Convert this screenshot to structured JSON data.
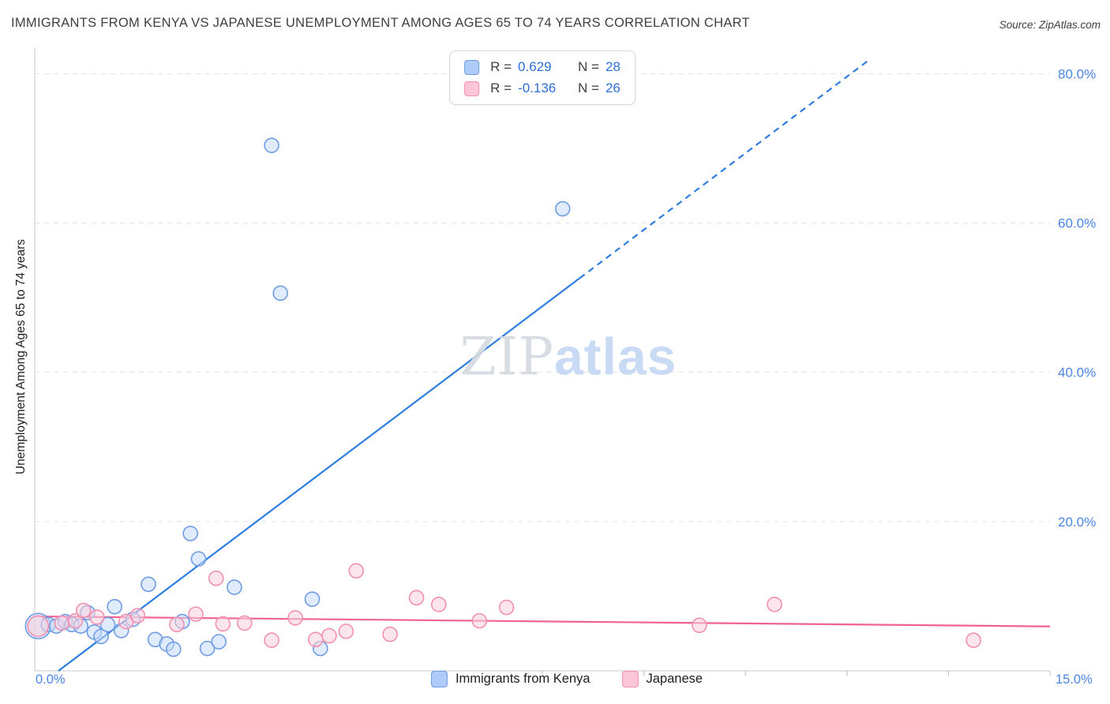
{
  "header": {
    "source": "Source: ZipAtlas.com"
  },
  "watermark": {
    "part1": "ZIP",
    "part2": "atlas"
  },
  "legend_box": {
    "rows": [
      {
        "r_label": "R =",
        "r_value": "0.629",
        "n_label": "N =",
        "n_value": "28"
      },
      {
        "r_label": "R =",
        "r_value": "-0.136",
        "n_label": "N =",
        "n_value": "26"
      }
    ]
  },
  "bottom_legend": {
    "items": [
      {
        "label": "Immigrants from Kenya"
      },
      {
        "label": "Japanese"
      }
    ]
  },
  "chart_data": {
    "type": "scatter",
    "title": "IMMIGRANTS FROM KENYA VS JAPANESE UNEMPLOYMENT AMONG AGES 65 TO 74 YEARS CORRELATION CHART",
    "ylabel": "Unemployment Among Ages 65 to 74 years",
    "x_tick_labels": {
      "min": "0.0%",
      "max": "15.0%"
    },
    "x_axis": {
      "min": 0,
      "max": 15,
      "minor_ticks": [
        7.5,
        9,
        10.5,
        12,
        13.5,
        15
      ]
    },
    "y_axis": {
      "min": 0,
      "max": 83,
      "ticks": [
        20,
        40,
        60,
        80
      ]
    },
    "colors": {
      "axis_labels": "#4a86e8",
      "blue_line": "#2e7de0",
      "pink_line": "#f06292",
      "gridline": "#e1e1e1"
    },
    "series": [
      {
        "name": "Immigrants from Kenya",
        "R": 0.629,
        "N": 28,
        "point_name": "scatter-point-kenya",
        "point_fill": "#c7dafc",
        "point_stroke": "#6f9de3",
        "points": [
          [
            0.05,
            6.0,
            16
          ],
          [
            0.2,
            6.2
          ],
          [
            0.32,
            6.0
          ],
          [
            0.45,
            6.6
          ],
          [
            0.55,
            6.2
          ],
          [
            0.68,
            6.0
          ],
          [
            0.78,
            7.8
          ],
          [
            0.88,
            5.2
          ],
          [
            0.98,
            4.6
          ],
          [
            1.08,
            6.2
          ],
          [
            1.18,
            8.6
          ],
          [
            1.28,
            5.4
          ],
          [
            1.45,
            6.9
          ],
          [
            1.68,
            11.6
          ],
          [
            1.78,
            4.2
          ],
          [
            1.95,
            3.6
          ],
          [
            2.05,
            2.9
          ],
          [
            2.18,
            6.6
          ],
          [
            2.3,
            18.4
          ],
          [
            2.42,
            15.0
          ],
          [
            2.55,
            3.0
          ],
          [
            2.72,
            3.9
          ],
          [
            2.95,
            11.2
          ],
          [
            3.5,
            70.4
          ],
          [
            3.63,
            50.6
          ],
          [
            4.1,
            9.6
          ],
          [
            4.22,
            3.0
          ],
          [
            7.8,
            61.9
          ]
        ]
      },
      {
        "name": "Japanese",
        "R": -0.136,
        "N": 26,
        "point_name": "scatter-point-japanese",
        "point_fill": "#fbcfdd",
        "point_stroke": "#f191b2",
        "points": [
          [
            0.05,
            6.0,
            13
          ],
          [
            0.4,
            6.4
          ],
          [
            0.6,
            6.7
          ],
          [
            0.72,
            8.1
          ],
          [
            0.92,
            7.2
          ],
          [
            1.35,
            6.6
          ],
          [
            1.52,
            7.4
          ],
          [
            2.1,
            6.2
          ],
          [
            2.38,
            7.6
          ],
          [
            2.68,
            12.4
          ],
          [
            2.78,
            6.3
          ],
          [
            3.1,
            6.4
          ],
          [
            3.5,
            4.1
          ],
          [
            3.85,
            7.1
          ],
          [
            4.15,
            4.2
          ],
          [
            4.35,
            4.7
          ],
          [
            4.6,
            5.3
          ],
          [
            4.75,
            13.4
          ],
          [
            5.25,
            4.9
          ],
          [
            5.64,
            9.8
          ],
          [
            5.97,
            8.9
          ],
          [
            6.57,
            6.7
          ],
          [
            6.97,
            8.5
          ],
          [
            9.82,
            6.1
          ],
          [
            10.93,
            8.9
          ],
          [
            13.87,
            4.1
          ]
        ]
      }
    ],
    "trend_lines": [
      {
        "name": "kenya-trend-line",
        "color": "#2e7de0",
        "segments": [
          {
            "from": [
              0.35,
              0
            ],
            "to": [
              8.05,
              52.6
            ],
            "dashed": false
          },
          {
            "from": [
              8.05,
              52.6
            ],
            "to": [
              12.35,
              82
            ],
            "dashed": true
          }
        ]
      },
      {
        "name": "japanese-trend-line",
        "color": "#f06292",
        "segments": [
          {
            "from": [
              0,
              7.3
            ],
            "to": [
              15,
              5.95
            ],
            "dashed": false
          }
        ]
      }
    ]
  }
}
